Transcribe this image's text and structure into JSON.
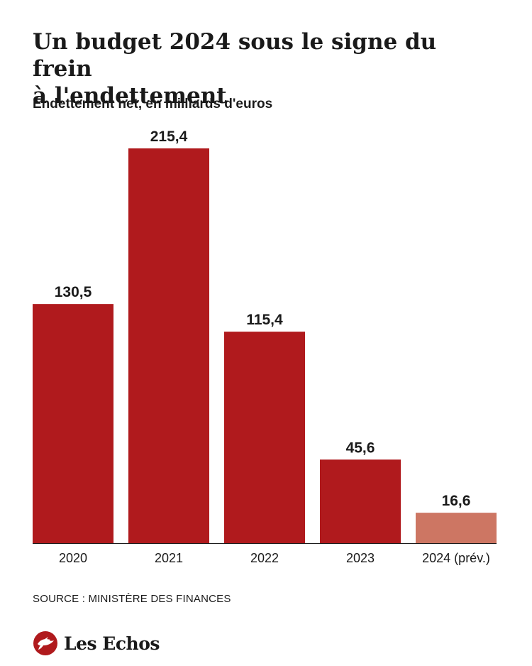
{
  "header": {
    "title_line1": "Un budget 2024 sous le signe du frein",
    "title_line2": "à l'endettement"
  },
  "colors": {
    "bar": "#b01a1d",
    "bar_forecast": "#cd7663",
    "axis": "#1a1a1a",
    "text": "#1a1a1a"
  },
  "chart_data": {
    "type": "bar",
    "title": "Un budget 2024 sous le signe du frein à l'endettement",
    "subtitle": "Endettement net, en milliards d'euros",
    "categories": [
      "2020",
      "2021",
      "2022",
      "2023",
      "2024 (prév.)"
    ],
    "values": [
      130.5,
      215.4,
      115.4,
      45.6,
      16.6
    ],
    "value_labels": [
      "130,5",
      "215,4",
      "115,4",
      "45,6",
      "16,6"
    ],
    "forecast": [
      false,
      false,
      false,
      false,
      true
    ],
    "ylim": [
      0,
      215.4
    ],
    "grid": false,
    "legend": "none"
  },
  "footer": {
    "source": "SOURCE : MINISTÈRE DES FINANCES",
    "brand": "Les Echos",
    "logo_icon": "les-echos-logo-icon"
  }
}
